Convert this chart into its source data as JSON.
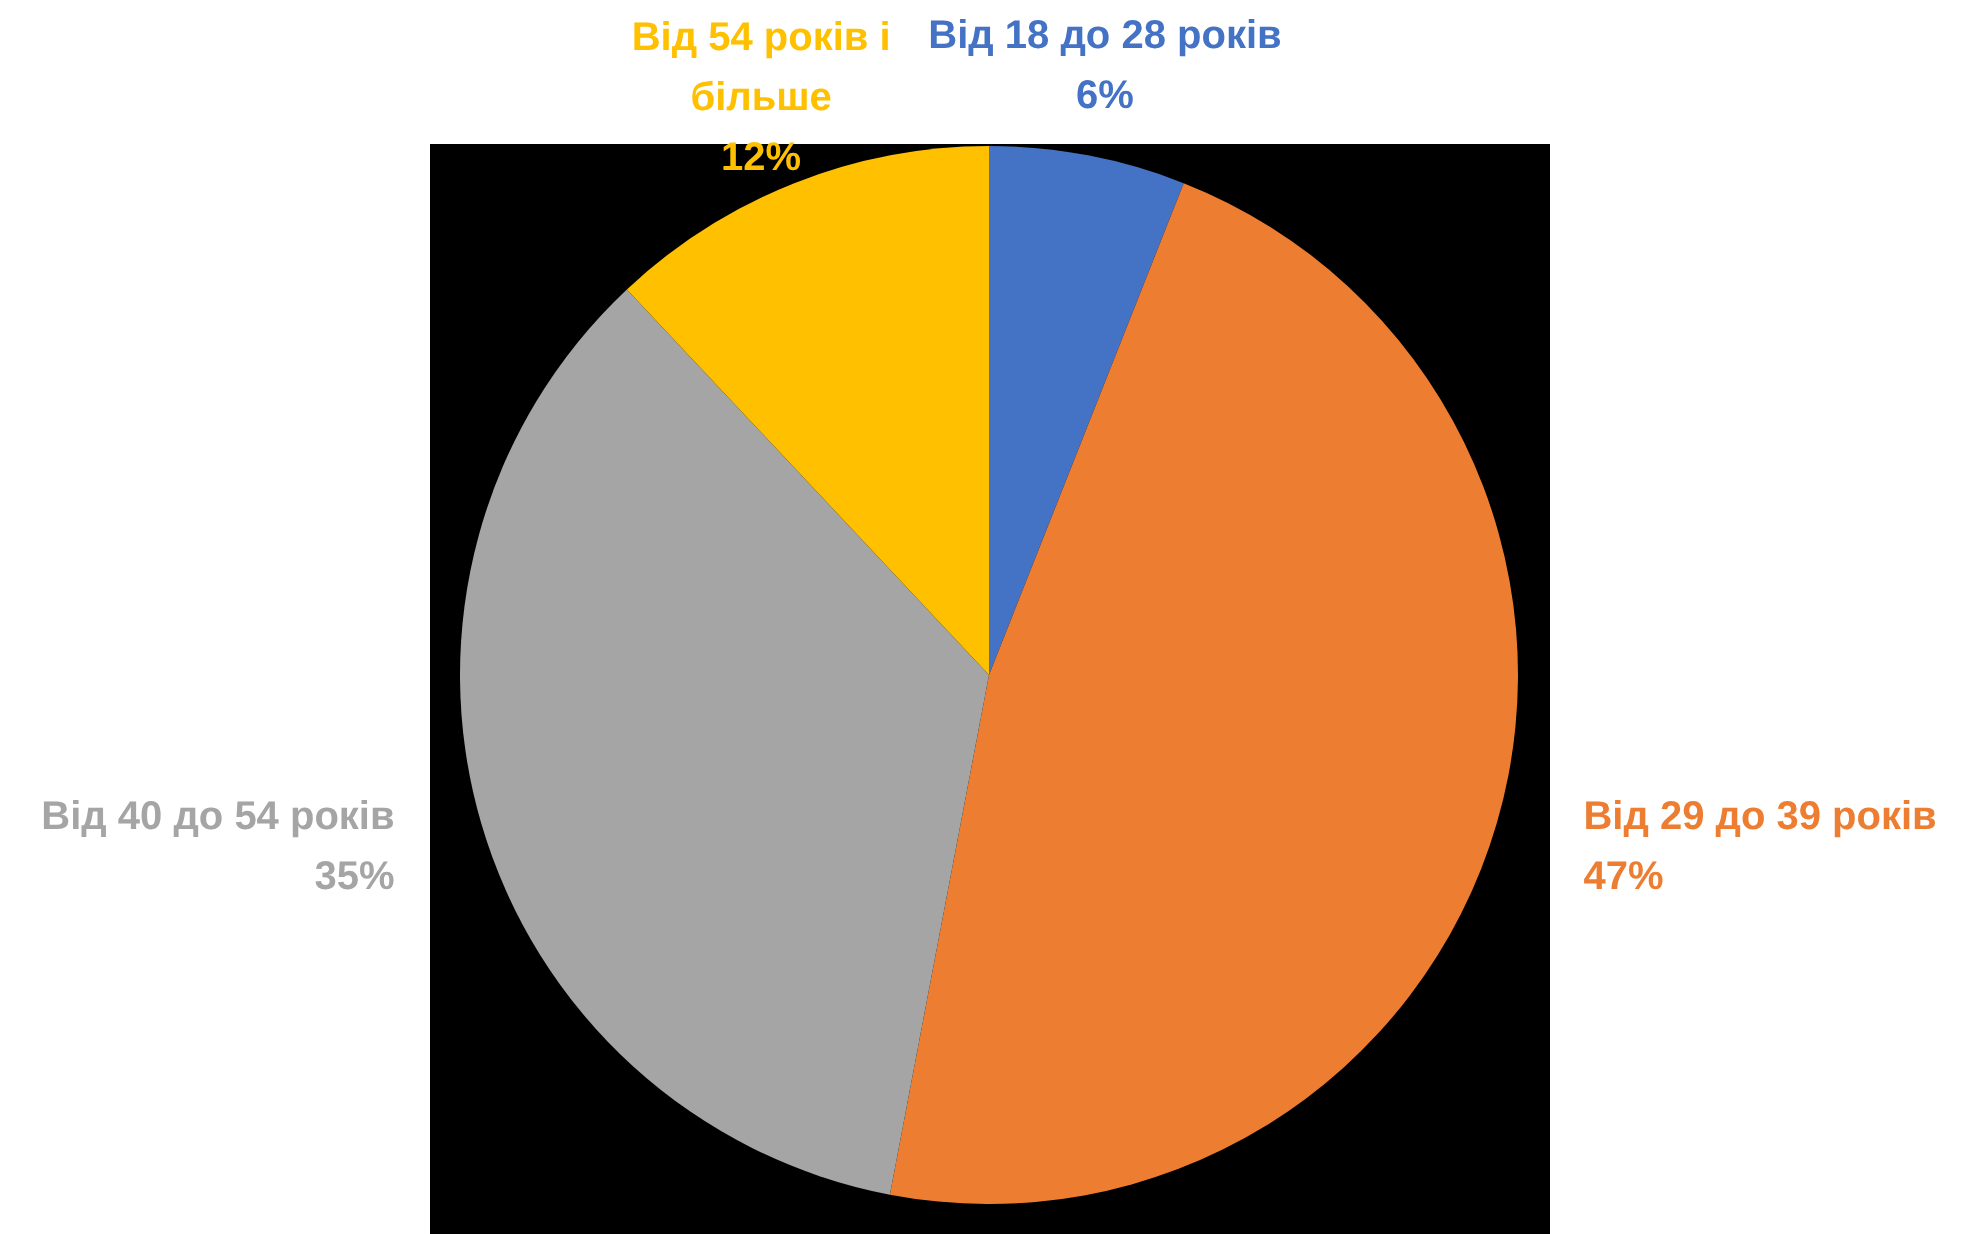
{
  "chart_data": {
    "type": "pie",
    "categories": [
      "Від 18 до 28 років",
      "Від 29 до 39 років",
      "Від 40 до 54 років",
      "Від 54 років і більше"
    ],
    "values": [
      6,
      47,
      35,
      12
    ],
    "value_labels": [
      "6%",
      "47%",
      "35%",
      "12%"
    ],
    "colors": [
      "#4472c4",
      "#ed7d31",
      "#a5a5a5",
      "#ffc000"
    ],
    "legend": false
  }
}
